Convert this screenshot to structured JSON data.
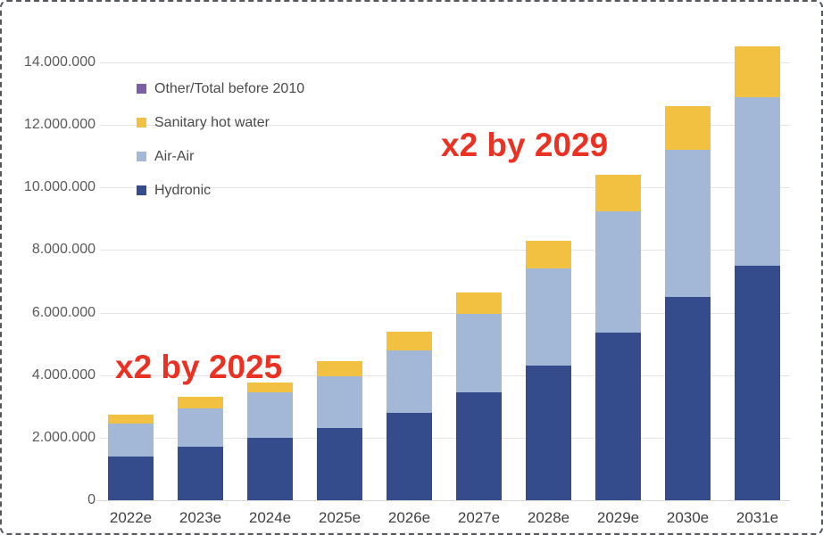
{
  "chart_data": {
    "type": "bar",
    "stacked": true,
    "title": "",
    "xlabel": "",
    "ylabel": "",
    "categories": [
      "2022e",
      "2023e",
      "2024e",
      "2025e",
      "2026e",
      "2027e",
      "2028e",
      "2029e",
      "2030e",
      "2031e"
    ],
    "series": [
      {
        "name": "Hydronic",
        "color": "#344B8C",
        "values": [
          1400000,
          1700000,
          2000000,
          2300000,
          2800000,
          3450000,
          4300000,
          5350000,
          6500000,
          7500000
        ]
      },
      {
        "name": "Air-Air",
        "color": "#A3B8D6",
        "values": [
          1050000,
          1250000,
          1450000,
          1650000,
          2000000,
          2500000,
          3100000,
          3900000,
          4700000,
          5400000
        ]
      },
      {
        "name": "Sanitary hot water",
        "color": "#F2C142",
        "values": [
          300000,
          350000,
          300000,
          500000,
          600000,
          700000,
          900000,
          1150000,
          1400000,
          1600000
        ]
      },
      {
        "name": "Other/Total before 2010",
        "color": "#7C5FA5",
        "values": [
          0,
          0,
          0,
          0,
          0,
          0,
          0,
          0,
          0,
          0
        ]
      }
    ],
    "legend_order": [
      3,
      2,
      1,
      0
    ],
    "legend_position": "inside-top-left",
    "ylim": [
      0,
      14000000
    ],
    "grid": "horizontal",
    "y_ticks": [
      {
        "value": 0,
        "label": "0"
      },
      {
        "value": 2000000,
        "label": "2.000.000"
      },
      {
        "value": 4000000,
        "label": "4.000.000"
      },
      {
        "value": 6000000,
        "label": "6.000.000"
      },
      {
        "value": 8000000,
        "label": "8.000.000"
      },
      {
        "value": 10000000,
        "label": "10.000.000"
      },
      {
        "value": 12000000,
        "label": "12.000.000"
      },
      {
        "value": 14000000,
        "label": "14.000.000"
      }
    ],
    "annotations": [
      {
        "text": "x2 by 2025",
        "color": "#E93223"
      },
      {
        "text": "x2 by 2029",
        "color": "#E93223"
      }
    ]
  }
}
